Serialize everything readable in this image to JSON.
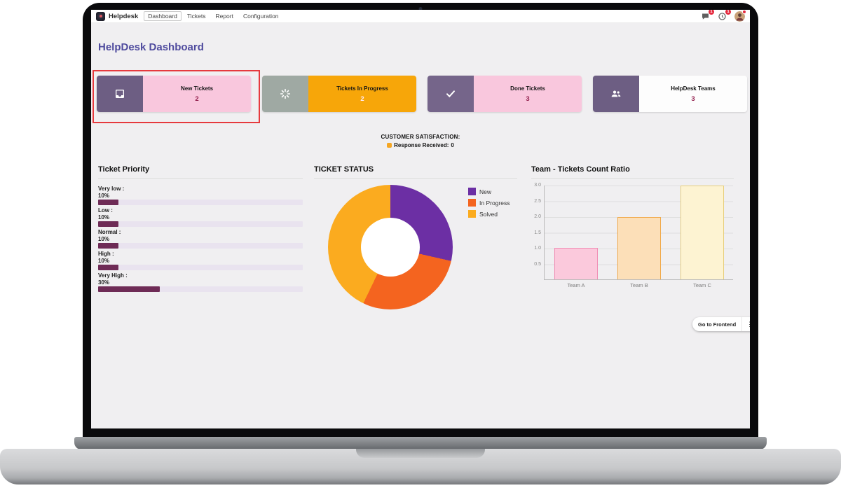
{
  "navbar": {
    "app_name": "Helpdesk",
    "menu": [
      {
        "label": "Dashboard",
        "active": true
      },
      {
        "label": "Tickets",
        "active": false
      },
      {
        "label": "Report",
        "active": false
      },
      {
        "label": "Configuration",
        "active": false
      }
    ],
    "badges": {
      "messages": "1",
      "activities": "1"
    }
  },
  "page_title": "HelpDesk Dashboard",
  "kpi_cards": [
    {
      "label": "New Tickets",
      "value": "2",
      "icon": "inbox-icon",
      "body_color": "#f9c7dd",
      "icon_bg": "#6d5e83",
      "value_color": "#93204e",
      "highlighted": true
    },
    {
      "label": "Tickets In Progress",
      "value": "2",
      "icon": "spinner-icon",
      "body_color": "#f7a609",
      "icon_bg": "#9fa9a3",
      "value_color": "#ffe9f2",
      "highlighted": false
    },
    {
      "label": "Done Tickets",
      "value": "3",
      "icon": "check-icon",
      "body_color": "#f9c7dd",
      "icon_bg": "#75658a",
      "value_color": "#93204e",
      "highlighted": false
    },
    {
      "label": "HelpDesk Teams",
      "value": "3",
      "icon": "team-icon",
      "body_color": "#fdfdfd",
      "icon_bg": "#6d5e83",
      "value_color": "#93204e",
      "highlighted": false
    }
  ],
  "satisfaction": {
    "title": "CUSTOMER SATISFACTION:",
    "response_label": "Response Received:",
    "response_value": "0",
    "emoji_color": "#f5a623"
  },
  "sections": {
    "priority": {
      "title": "Ticket Priority",
      "items": [
        {
          "label": "Very low :",
          "percent": "10%"
        },
        {
          "label": "Low :",
          "percent": "10%"
        },
        {
          "label": "Normal :",
          "percent": "10%"
        },
        {
          "label": "High :",
          "percent": "10%"
        },
        {
          "label": "Very High :",
          "percent": "30%"
        }
      ]
    },
    "status": {
      "title": "TICKET STATUS",
      "legend": [
        "New",
        "In Progress",
        "Solved"
      ]
    },
    "team": {
      "title": "Team - Tickets Count Ratio",
      "x_categories": [
        "Team A",
        "Team B",
        "Team C"
      ]
    }
  },
  "chart_data": [
    {
      "name": "ticket_priority",
      "type": "bar",
      "orientation": "horizontal",
      "title": "Ticket Priority",
      "categories": [
        "Very low",
        "Low",
        "Normal",
        "High",
        "Very High"
      ],
      "values": [
        10,
        10,
        10,
        10,
        30
      ],
      "unit": "%",
      "xlim": [
        0,
        100
      ],
      "bar_color": "#6e2b56",
      "track_color": "#e9e3ef"
    },
    {
      "name": "ticket_status",
      "type": "pie",
      "donut": true,
      "title": "TICKET STATUS",
      "labels": [
        "New",
        "In Progress",
        "Solved"
      ],
      "values": [
        2,
        2,
        3
      ],
      "colors": [
        "#6c2fa4",
        "#f4641f",
        "#fbab1f"
      ],
      "legend_position": "right"
    },
    {
      "name": "team_ratio",
      "type": "bar",
      "title": "Team - Tickets Count Ratio",
      "categories": [
        "Team A",
        "Team B",
        "Team C"
      ],
      "values": [
        1,
        2,
        3
      ],
      "ylim": [
        0,
        3
      ],
      "yticks": [
        "3.0",
        "2.5",
        "2.0",
        "1.5",
        "1.0",
        "0.5"
      ],
      "grid": true,
      "fill_colors": [
        "#fbc9dc",
        "#fcdfb8",
        "#fdf3d2"
      ],
      "border_colors": [
        "#f08cb4",
        "#f0a94a",
        "#e8cf7c"
      ]
    }
  ],
  "footer": {
    "go_to_frontend": "Go to Frontend",
    "kebab": "⋮"
  }
}
